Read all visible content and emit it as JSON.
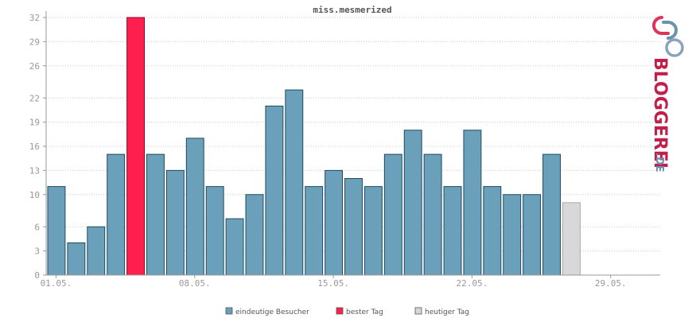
{
  "chart_data": {
    "type": "bar",
    "title": "miss.mesmerized",
    "ylim": [
      0,
      32
    ],
    "yticks": [
      0,
      3,
      6,
      10,
      13,
      16,
      19,
      22,
      26,
      29,
      32
    ],
    "x_ticks": [
      {
        "index": 0,
        "label": "01.05."
      },
      {
        "index": 7,
        "label": "08.05."
      },
      {
        "index": 14,
        "label": "15.05."
      },
      {
        "index": 21,
        "label": "22.05."
      },
      {
        "index": 28,
        "label": "29.05."
      }
    ],
    "num_slots": 31,
    "values": [
      11,
      4,
      6,
      15,
      32,
      15,
      13,
      17,
      11,
      7,
      10,
      21,
      23,
      11,
      13,
      12,
      11,
      15,
      18,
      15,
      11,
      18,
      11,
      10,
      10,
      15,
      9
    ],
    "best_index": 4,
    "today_index": 26,
    "grid": true,
    "legend_position": "bottom",
    "legend": [
      {
        "label": "eindeutige Besucher",
        "color": "#6aa0ba"
      },
      {
        "label": "bester Tag",
        "color": "#ff1f4e"
      },
      {
        "label": "heutiger Tag",
        "color": "#d8d8d8"
      }
    ]
  },
  "logo": {
    "name": "BLOGGEREI",
    "suffix": ".DE"
  }
}
